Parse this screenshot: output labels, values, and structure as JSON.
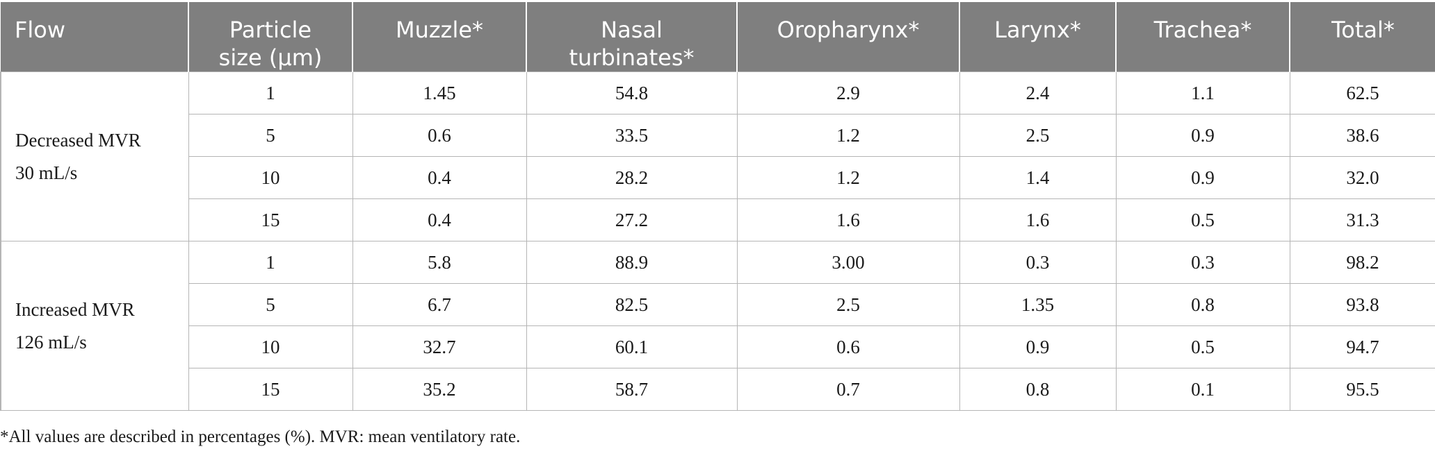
{
  "table": {
    "headers": [
      [
        "Flow"
      ],
      [
        "Particle",
        "size (μm)"
      ],
      [
        "Muzzle*"
      ],
      [
        "Nasal",
        "turbinates*"
      ],
      [
        "Oropharynx*"
      ],
      [
        "Larynx*"
      ],
      [
        "Trachea*"
      ],
      [
        "Total*"
      ]
    ],
    "groups": [
      {
        "flow_lines": [
          "Decreased MVR",
          "30 mL/s"
        ],
        "rows": [
          [
            "1",
            "1.45",
            "54.8",
            "2.9",
            "2.4",
            "1.1",
            "62.5"
          ],
          [
            "5",
            "0.6",
            "33.5",
            "1.2",
            "2.5",
            "0.9",
            "38.6"
          ],
          [
            "10",
            "0.4",
            "28.2",
            "1.2",
            "1.4",
            "0.9",
            "32.0"
          ],
          [
            "15",
            "0.4",
            "27.2",
            "1.6",
            "1.6",
            "0.5",
            "31.3"
          ]
        ]
      },
      {
        "flow_lines": [
          "Increased MVR",
          "126 mL/s"
        ],
        "rows": [
          [
            "1",
            "5.8",
            "88.9",
            "3.00",
            "0.3",
            "0.3",
            "98.2"
          ],
          [
            "5",
            "6.7",
            "82.5",
            "2.5",
            "1.35",
            "0.8",
            "93.8"
          ],
          [
            "10",
            "32.7",
            "60.1",
            "0.6",
            "0.9",
            "0.5",
            "94.7"
          ],
          [
            "15",
            "35.2",
            "58.7",
            "0.7",
            "0.8",
            "0.1",
            "95.5"
          ]
        ]
      }
    ]
  },
  "footnote": "*All values are described in percentages (%). MVR: mean ventilatory rate.",
  "colors": {
    "header_bg": "#7f7f7f",
    "header_text": "#ffffff",
    "grid": "#b5b5b5"
  }
}
